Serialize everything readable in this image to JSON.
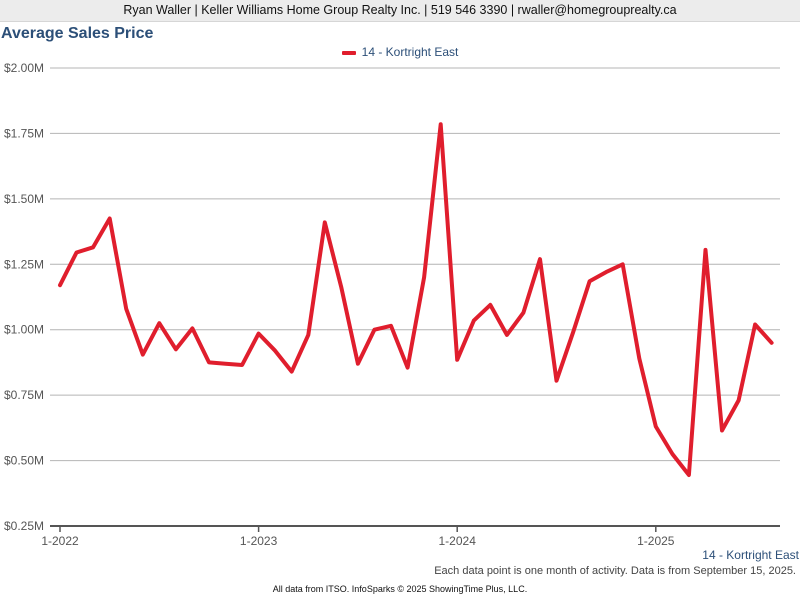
{
  "header": {
    "agent_line": "Ryan Waller | Keller Williams Home Group Realty Inc. | 519 546 3390 | rwaller@homegrouprealty.ca"
  },
  "footer": {
    "note": "Each data point is one month of activity. Data is from September 15, 2025.",
    "credit": "All data from ITSO. InfoSparks © 2025 ShowingTime Plus, LLC."
  },
  "chart_data": {
    "type": "line",
    "title": "Average Sales Price",
    "xlabel": "",
    "ylabel": "",
    "ylim": [
      250000,
      2000000
    ],
    "yticks": [
      2000000,
      1750000,
      1500000,
      1250000,
      1000000,
      750000,
      500000,
      250000
    ],
    "ytick_labels": [
      "$2.00M",
      "$1.75M",
      "$1.50M",
      "$1.25M",
      "$1.00M",
      "$0.75M",
      "$0.50M",
      "$0.25M"
    ],
    "xtick_labels": [
      "1-2022",
      "1-2023",
      "1-2024",
      "1-2025"
    ],
    "grid": true,
    "legend_position": "top-center",
    "series_label_end": "14 - Kortright East",
    "colors": {
      "series": "#e01e2d",
      "title": "#2c4f78",
      "grid": "#b4b4b4"
    },
    "series": [
      {
        "name": "14 - Kortright East",
        "x": [
          "2022-01",
          "2022-02",
          "2022-03",
          "2022-04",
          "2022-05",
          "2022-06",
          "2022-07",
          "2022-08",
          "2022-09",
          "2022-10",
          "2022-11",
          "2022-12",
          "2023-01",
          "2023-02",
          "2023-03",
          "2023-04",
          "2023-05",
          "2023-06",
          "2023-07",
          "2023-08",
          "2023-09",
          "2023-10",
          "2023-11",
          "2023-12",
          "2024-01",
          "2024-02",
          "2024-03",
          "2024-04",
          "2024-05",
          "2024-06",
          "2024-07",
          "2024-08",
          "2024-09",
          "2024-10",
          "2024-11",
          "2024-12",
          "2025-01",
          "2025-02",
          "2025-03",
          "2025-04",
          "2025-05",
          "2025-06",
          "2025-07",
          "2025-08"
        ],
        "values": [
          1170000,
          1295000,
          1315000,
          1425000,
          1080000,
          905000,
          1025000,
          925000,
          1005000,
          875000,
          870000,
          865000,
          985000,
          920000,
          840000,
          980000,
          1410000,
          1160000,
          870000,
          1000000,
          1015000,
          855000,
          1200000,
          1785000,
          885000,
          1035000,
          1095000,
          980000,
          1065000,
          1270000,
          805000,
          990000,
          1185000,
          1220000,
          1250000,
          890000,
          630000,
          525000,
          445000,
          1305000,
          615000,
          730000,
          1020000,
          950000
        ]
      }
    ]
  }
}
